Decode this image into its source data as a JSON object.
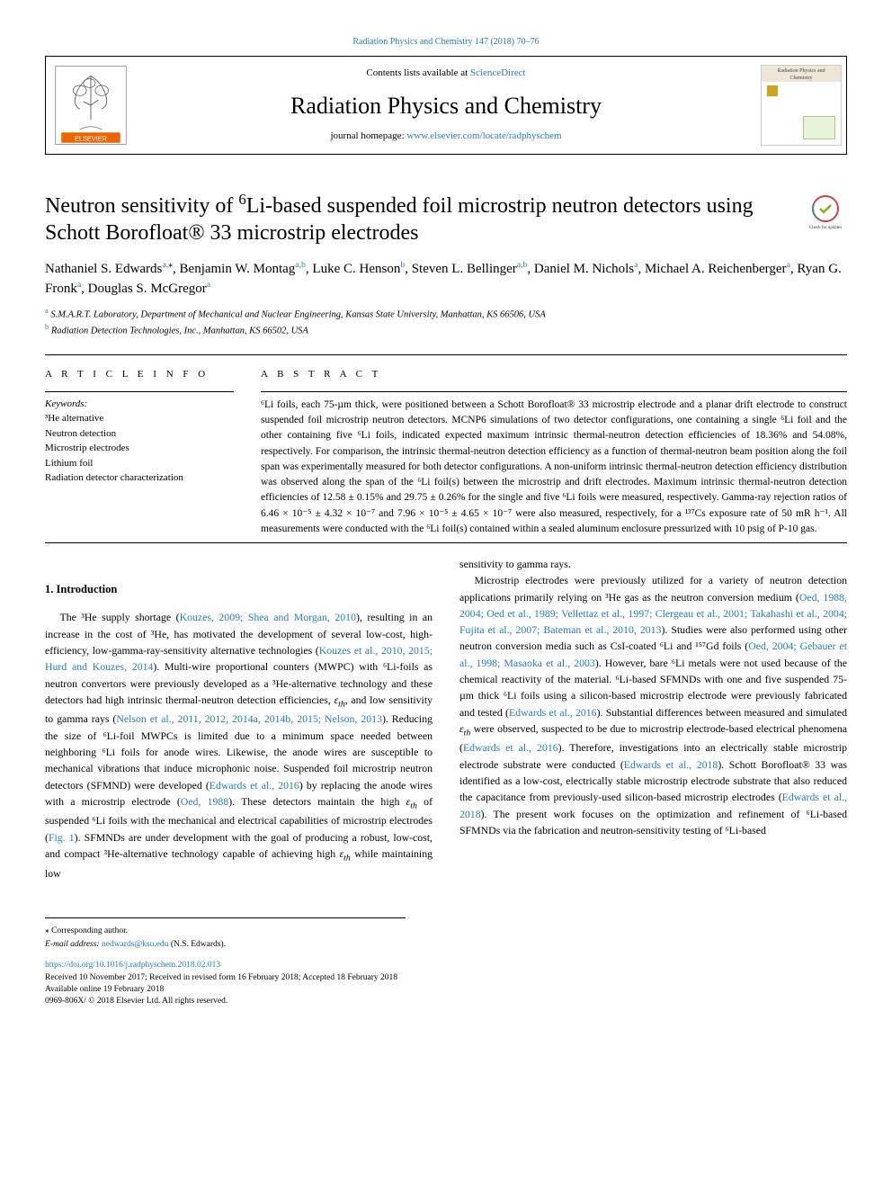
{
  "top_link": "Radiation Physics and Chemistry 147 (2018) 70–76",
  "header": {
    "contents_prefix": "Contents lists available at ",
    "contents_link": "ScienceDirect",
    "journal": "Radiation Physics and Chemistry",
    "homepage_prefix": "journal homepage: ",
    "homepage_link": "www.elsevier.com/locate/radphyschem"
  },
  "title_parts": {
    "p1": "Neutron sensitivity of ",
    "sup1": "6",
    "p2": "Li-based suspended foil microstrip neutron detectors using Schott Borofloat® 33 microstrip electrodes"
  },
  "badge_caption": "Check for updates",
  "authors_html_parts": {
    "a1_name": "Nathaniel S. Edwards",
    "a1_aff": "a,",
    "a1_star": "⁎",
    "a2_name": ", Benjamin W. Montag",
    "a2_aff": "a,b",
    "a3_name": ", Luke C. Henson",
    "a3_aff": "b",
    "a4_name": ", Steven L. Bellinger",
    "a4_aff": "a,b",
    "a5_name": ", Daniel M. Nichols",
    "a5_aff": "a",
    "a6_name": ", Michael A. Reichenberger",
    "a6_aff": "a",
    "a7_name": ", Ryan G. Fronk",
    "a7_aff": "a",
    "a8_name": ", Douglas S. McGregor",
    "a8_aff": "a"
  },
  "affiliations": {
    "a": "S.M.A.R.T. Laboratory, Department of Mechanical and Nuclear Engineering, Kansas State University, Manhattan, KS 66506, USA",
    "b": "Radiation Detection Technologies, Inc., Manhattan, KS 66502, USA"
  },
  "article_info_heading": "A R T I C L E  I N F O",
  "keywords_label": "Keywords:",
  "keywords": [
    "³He alternative",
    "Neutron detection",
    "Microstrip electrodes",
    "Lithium foil",
    "Radiation detector characterization"
  ],
  "abstract_heading": "A B S T R A C T",
  "abstract": "⁶Li foils, each 75-µm thick, were positioned between a Schott Borofloat® 33 microstrip electrode and a planar drift electrode to construct suspended foil microstrip neutron detectors. MCNP6 simulations of two detector configurations, one containing a single ⁶Li foil and the other containing five ⁶Li foils, indicated expected maximum intrinsic thermal-neutron detection efficiencies of 18.36% and 54.08%, respectively. For comparison, the intrinsic thermal-neutron detection efficiency as a function of thermal-neutron beam position along the foil span was experimentally measured for both detector configurations. A non-uniform intrinsic thermal-neutron detection efficiency distribution was observed along the span of the ⁶Li foil(s) between the microstrip and drift electrodes. Maximum intrinsic thermal-neutron detection efficiencies of 12.58 ± 0.15% and 29.75 ± 0.26% for the single and five ⁶Li foils were measured, respectively. Gamma-ray rejection ratios of 6.46 × 10⁻⁵ ± 4.32 × 10⁻⁷ and 7.96 × 10⁻⁵ ± 4.65 × 10⁻⁷ were also measured, respectively, for a ¹³⁷Cs exposure rate of 50 mR h⁻¹. All measurements were conducted with the ⁶Li foil(s) contained within a sealed aluminum enclosure pressurized with 10 psig of P-10 gas.",
  "section1_title": "1. Introduction",
  "intro_col1_runs": [
    {
      "t": "The ³He supply shortage ("
    },
    {
      "t": "Kouzes, 2009; Shea and Morgan, 2010",
      "ref": true
    },
    {
      "t": "), resulting in an increase in the cost of ³He, has motivated the development of several low-cost, high-efficiency, low-gamma-ray-sensitivity alternative technologies ("
    },
    {
      "t": "Kouzes et al., 2010, 2015; Hurd and Kouzes, 2014",
      "ref": true
    },
    {
      "t": "). Multi-wire proportional counters (MWPC) with ⁶Li-foils as neutron convertors were previously developed as a ³He-alternative technology and these detectors had high intrinsic thermal-neutron detection efficiencies, "
    },
    {
      "t": "ε",
      "em": true
    },
    {
      "t": "th",
      "sub": true,
      "em": true
    },
    {
      "t": ", and low sensitivity to gamma rays ("
    },
    {
      "t": "Nelson et al., 2011, 2012, 2014a, 2014b, 2015; Nelson, 2013",
      "ref": true
    },
    {
      "t": "). Reducing the size of ⁶Li-foil MWPCs is limited due to a minimum space needed between neighboring ⁶Li foils for anode wires. Likewise, the anode wires are susceptible to mechanical vibrations that induce microphonic noise. Suspended foil microstrip neutron detectors (SFMND) were developed ("
    },
    {
      "t": "Edwards et al., 2016",
      "ref": true
    },
    {
      "t": ") by replacing the anode wires with a microstrip electrode ("
    },
    {
      "t": "Oed, 1988",
      "ref": true
    },
    {
      "t": "). These detectors maintain the high "
    },
    {
      "t": "ε",
      "em": true
    },
    {
      "t": "th",
      "sub": true,
      "em": true
    },
    {
      "t": " of suspended ⁶Li foils with the mechanical and electrical capabilities of microstrip electrodes ("
    },
    {
      "t": "Fig. 1",
      "ref": true
    },
    {
      "t": "). SFMNDs are under development with the goal of producing a robust, low-cost, and compact ³He-alternative technology capable of achieving high "
    },
    {
      "t": "ε",
      "em": true
    },
    {
      "t": "th",
      "sub": true,
      "em": true
    },
    {
      "t": " while maintaining low "
    }
  ],
  "intro_col2_runs": [
    {
      "t": "sensitivity to gamma rays.",
      "noindent": true
    },
    {
      "break": true
    },
    {
      "t": "Microstrip electrodes were previously utilized for a variety of neutron detection applications primarily relying on ³He gas as the neutron conversion medium ("
    },
    {
      "t": "Oed, 1988, 2004; Oed et al., 1989; Vellettaz et al., 1997; Clergeau et al., 2001; Takahashi et al., 2004; Fujita et al., 2007; Bateman et al., 2010, 2013",
      "ref": true
    },
    {
      "t": "). Studies were also performed using other neutron conversion media such as CsI-coated ⁶Li and ¹⁵⁷Gd foils ("
    },
    {
      "t": "Oed, 2004; Gebauer et al., 1998; Masaoka et al., 2003",
      "ref": true
    },
    {
      "t": "). However, bare ⁶Li metals were not used because of the chemical reactivity of the material. ⁶Li-based SFMNDs with one and five suspended 75-µm thick ⁶Li foils using a silicon-based microstrip electrode were previously fabricated and tested ("
    },
    {
      "t": "Edwards et al., 2016",
      "ref": true
    },
    {
      "t": "). Substantial differences between measured and simulated "
    },
    {
      "t": "ε",
      "em": true
    },
    {
      "t": "th",
      "sub": true,
      "em": true
    },
    {
      "t": " were observed, suspected to be due to microstrip electrode-based electrical phenomena ("
    },
    {
      "t": "Edwards et al., 2016",
      "ref": true
    },
    {
      "t": "). Therefore, investigations into an electrically stable microstrip electrode substrate were conducted ("
    },
    {
      "t": "Edwards et al., 2018",
      "ref": true
    },
    {
      "t": "). Schott Borofloat® 33 was identified as a low-cost, electrically stable microstrip electrode substrate that also reduced the capacitance from previously-used silicon-based microstrip electrodes ("
    },
    {
      "t": "Edwards et al., 2018",
      "ref": true
    },
    {
      "t": "). The present work focuses on the optimization and refinement of ⁶Li-based SFMNDs via the fabrication and neutron-sensitivity testing of ⁶Li-based"
    }
  ],
  "footnotes": {
    "corr": "⁎ Corresponding author.",
    "email_label": "E-mail address: ",
    "email": "nedwards@ksu.edu",
    "email_paren": " (N.S. Edwards)."
  },
  "bottom": {
    "doi": "https://doi.org/10.1016/j.radphyschem.2018.02.013",
    "received": "Received 10 November 2017; Received in revised form 16 February 2018; Accepted 18 February 2018",
    "online": "Available online 19 February 2018",
    "copyright": "0969-806X/ © 2018 Elsevier Ltd. All rights reserved."
  },
  "colors": {
    "link": "#2878c4",
    "elsevier_orange": "#eb6500"
  }
}
